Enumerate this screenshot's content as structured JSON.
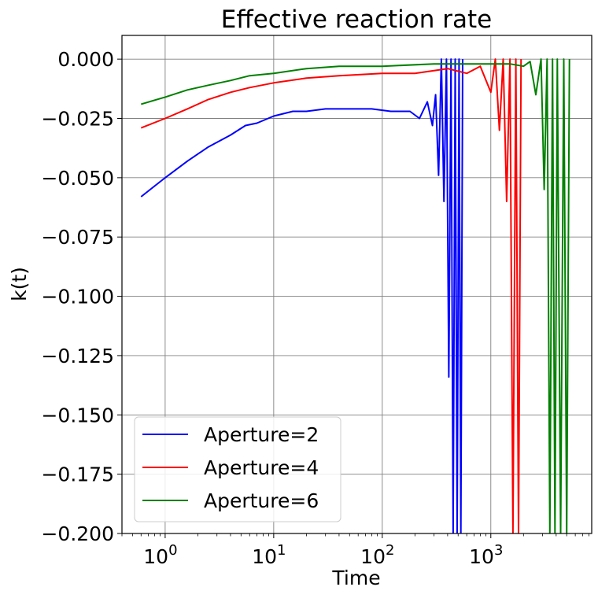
{
  "chart_data": {
    "type": "line",
    "title": "Effective reaction rate",
    "xlabel": "Time",
    "ylabel": "k(t)",
    "xscale": "log",
    "xlim": [
      0.4,
      8500
    ],
    "ylim": [
      -0.2,
      0.01
    ],
    "grid": true,
    "legend_position": "lower-left",
    "x_ticks": [
      {
        "base": "10",
        "exp": "0",
        "value": 1
      },
      {
        "base": "10",
        "exp": "1",
        "value": 10
      },
      {
        "base": "10",
        "exp": "2",
        "value": 100
      },
      {
        "base": "10",
        "exp": "3",
        "value": 1000
      }
    ],
    "y_ticks": [
      {
        "label": "0.000",
        "value": 0.0
      },
      {
        "label": "−0.025",
        "value": -0.025
      },
      {
        "label": "−0.050",
        "value": -0.05
      },
      {
        "label": "−0.075",
        "value": -0.075
      },
      {
        "label": "−0.100",
        "value": -0.1
      },
      {
        "label": "−0.125",
        "value": -0.125
      },
      {
        "label": "−0.150",
        "value": -0.15
      },
      {
        "label": "−0.175",
        "value": -0.175
      },
      {
        "label": "−0.200",
        "value": -0.2
      }
    ],
    "series": [
      {
        "name": "Aperture=2",
        "color": "#0000ff",
        "x": [
          0.6,
          1.0,
          1.6,
          2.5,
          4.0,
          5.5,
          7.0,
          10,
          15,
          20,
          30,
          50,
          80,
          120,
          180,
          220,
          260,
          290,
          310,
          330,
          350,
          370,
          390,
          410,
          430,
          450,
          470,
          490,
          510,
          530,
          550
        ],
        "y": [
          -0.058,
          -0.05,
          -0.043,
          -0.037,
          -0.032,
          -0.028,
          -0.027,
          -0.024,
          -0.022,
          -0.022,
          -0.021,
          -0.021,
          -0.021,
          -0.022,
          -0.022,
          -0.025,
          -0.018,
          -0.028,
          -0.015,
          -0.049,
          0.0,
          -0.06,
          0.0,
          -0.134,
          0.0,
          -0.2,
          0.0,
          -0.2,
          0.0,
          -0.2,
          0.0
        ]
      },
      {
        "name": "Aperture=4",
        "color": "#ff0000",
        "x": [
          0.6,
          1.0,
          1.6,
          2.5,
          4.0,
          6.0,
          10,
          20,
          40,
          100,
          200,
          400,
          600,
          800,
          1000,
          1100,
          1200,
          1300,
          1400,
          1500,
          1600,
          1700,
          1800,
          1900
        ],
        "y": [
          -0.029,
          -0.025,
          -0.021,
          -0.017,
          -0.014,
          -0.012,
          -0.01,
          -0.008,
          -0.007,
          -0.006,
          -0.006,
          -0.004,
          -0.006,
          -0.003,
          -0.014,
          0.0,
          -0.03,
          0.0,
          -0.06,
          0.0,
          -0.2,
          0.0,
          -0.2,
          0.0
        ]
      },
      {
        "name": "Aperture=6",
        "color": "#008000",
        "x": [
          0.6,
          1.0,
          1.6,
          2.5,
          4.0,
          6.0,
          10,
          20,
          40,
          100,
          300,
          800,
          1500,
          2000,
          2300,
          2600,
          2900,
          3100,
          3300,
          3500,
          3700,
          3900,
          4100,
          4400,
          4700,
          5000,
          5300
        ],
        "y": [
          -0.019,
          -0.016,
          -0.013,
          -0.011,
          -0.009,
          -0.007,
          -0.006,
          -0.004,
          -0.003,
          -0.003,
          -0.002,
          -0.002,
          -0.002,
          -0.003,
          -0.001,
          -0.015,
          0.0,
          -0.055,
          0.0,
          -0.2,
          0.0,
          -0.2,
          0.0,
          -0.2,
          0.0,
          -0.2,
          0.0
        ]
      }
    ]
  }
}
